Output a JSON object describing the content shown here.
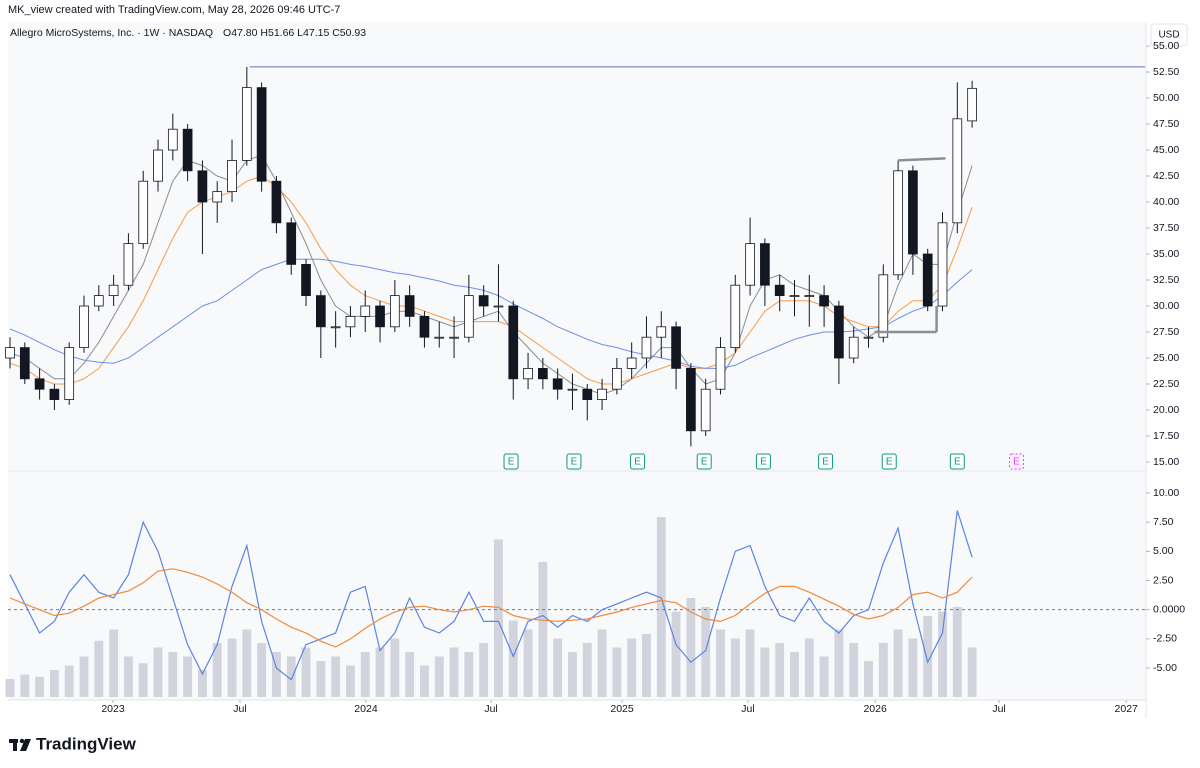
{
  "attribution": "MK_view created with TradingView.com, May 28, 2026 09:46 UTC-7",
  "brand": "TradingView",
  "chart_data": [
    {
      "type": "candlestick",
      "title": "Allegro MicroSystems, Inc. · 1W · NASDAQ",
      "ohlc_label": "O47.80 H51.66 L47.15 C50.93",
      "currency": "USD",
      "up_color": "#ffffff",
      "down_color": "#131722",
      "border_color": "#131722",
      "xlim": [
        -0.135,
        76.68
      ],
      "xticks": [
        {
          "value": 6.96,
          "label": "2023"
        },
        {
          "value": 15.54,
          "label": "Jul"
        },
        {
          "value": 24.05,
          "label": "2024"
        },
        {
          "value": 32.5,
          "label": "Jul"
        },
        {
          "value": 41.35,
          "label": "2025"
        },
        {
          "value": 49.86,
          "label": "Jul"
        },
        {
          "value": 58.45,
          "label": "2026"
        },
        {
          "value": 66.82,
          "label": "Jul"
        },
        {
          "value": 75.41,
          "label": "2027"
        }
      ],
      "ylim": [
        14.23,
        57.31
      ],
      "yticks": [
        {
          "value": 15,
          "label": "15.00"
        },
        {
          "value": 17.5,
          "label": "17.50"
        },
        {
          "value": 20,
          "label": "20.00"
        },
        {
          "value": 22.5,
          "label": "22.50"
        },
        {
          "value": 25,
          "label": "25.00"
        },
        {
          "value": 27.5,
          "label": "27.50"
        },
        {
          "value": 30,
          "label": "30.00"
        },
        {
          "value": 32.5,
          "label": "32.50"
        },
        {
          "value": 35,
          "label": "35.00"
        },
        {
          "value": 37.5,
          "label": "37.50"
        },
        {
          "value": 40,
          "label": "40.00"
        },
        {
          "value": 42.5,
          "label": "42.50"
        },
        {
          "value": 45,
          "label": "45.00"
        },
        {
          "value": 47.5,
          "label": "47.50"
        },
        {
          "value": 50,
          "label": "50.00"
        },
        {
          "value": 52.5,
          "label": "52.50"
        },
        {
          "value": 55,
          "label": "55.00"
        }
      ],
      "grid": false,
      "candles": {
        "open": [
          25,
          26,
          23,
          22,
          21,
          26,
          30,
          31,
          32,
          36,
          42,
          45,
          47,
          43,
          40,
          41,
          44,
          51,
          42,
          38,
          34,
          31,
          28,
          28,
          29,
          30,
          28,
          31,
          29,
          27,
          27,
          27,
          31,
          30,
          30,
          23,
          24,
          23,
          22,
          22,
          21,
          22,
          24,
          25,
          27,
          28,
          24,
          18,
          22,
          26,
          32,
          36,
          32,
          31,
          31,
          31,
          30,
          25,
          27,
          27,
          33,
          43,
          35,
          30,
          38,
          47.8
        ],
        "high": [
          27,
          26.5,
          24,
          22.5,
          26.5,
          31,
          32,
          33,
          37,
          43,
          46,
          48.5,
          47.5,
          44,
          42,
          46,
          53,
          51.5,
          42.5,
          38.5,
          34.5,
          31.5,
          29.5,
          30,
          31.5,
          30.5,
          32.5,
          32,
          29.5,
          28.5,
          29,
          33,
          32,
          34,
          30.5,
          25.5,
          25,
          24,
          23.5,
          22.5,
          23,
          25,
          26.5,
          29,
          29.5,
          28.5,
          24.5,
          23,
          27,
          33,
          38.5,
          36.5,
          33,
          32.5,
          33,
          32,
          30.5,
          28,
          28,
          34,
          44,
          43.5,
          35.5,
          39,
          51.5,
          51.66
        ],
        "low": [
          24,
          22.5,
          21,
          20,
          20.5,
          25.5,
          29.5,
          30,
          31.5,
          35.5,
          41,
          44,
          42,
          35,
          38,
          40,
          43.5,
          41,
          37,
          33,
          30,
          25,
          26,
          27,
          27.5,
          26.5,
          27.5,
          28,
          26,
          26,
          25,
          26.5,
          29,
          28.5,
          21,
          22,
          22,
          21,
          20,
          19,
          20,
          21.5,
          23,
          24,
          25,
          22,
          16.5,
          17.5,
          21.5,
          25.5,
          31,
          30,
          29.5,
          29,
          28,
          28,
          22.5,
          24.5,
          26,
          26.5,
          32.5,
          33,
          29.5,
          29.5,
          37,
          47.15
        ],
        "close": [
          26,
          23,
          22,
          21,
          26,
          30,
          31,
          32,
          36,
          42,
          45,
          47,
          43,
          40,
          41,
          44,
          51,
          42,
          38,
          34,
          31,
          28,
          28,
          29,
          30,
          28,
          31,
          29,
          27,
          27,
          27,
          31,
          30,
          30,
          23,
          24,
          23,
          22,
          22,
          21,
          22,
          24,
          25,
          27,
          28,
          24,
          18,
          22,
          26,
          32,
          36,
          32,
          31,
          31,
          31,
          30,
          25,
          27,
          27,
          33,
          43,
          35,
          30,
          38,
          48,
          50.93
        ]
      },
      "series": [
        {
          "color": "#8c8c8c",
          "values": [
            25.5,
            25,
            24,
            23,
            23,
            24.5,
            26.5,
            29,
            31.5,
            34,
            38,
            42,
            44,
            43.5,
            42.5,
            42,
            44,
            44.5,
            42,
            39,
            36,
            32.5,
            30,
            29,
            29,
            29,
            29.5,
            29.5,
            29,
            28.5,
            28,
            28.5,
            29,
            29.5,
            27.5,
            26,
            24.5,
            23.5,
            22.5,
            22,
            21.5,
            22,
            23,
            24.5,
            26,
            26,
            24,
            22.5,
            23,
            25.5,
            30,
            32.5,
            33,
            32,
            31.5,
            31,
            29.5,
            28,
            27,
            28,
            32,
            35,
            34,
            34,
            39,
            43.5
          ]
        },
        {
          "color": "#f59c4a",
          "values": [
            24.5,
            24,
            23,
            22.5,
            22.5,
            23,
            24,
            26,
            28,
            30.5,
            33.5,
            36.5,
            39,
            40,
            40.5,
            41,
            42,
            42.5,
            41.5,
            40,
            38,
            35.5,
            33.5,
            32,
            31,
            30.5,
            30,
            30,
            29.5,
            29,
            28.5,
            28.5,
            28.5,
            28.5,
            28,
            27,
            26,
            25,
            24,
            23,
            22.5,
            22.5,
            23,
            23.5,
            24,
            24.5,
            24,
            24,
            24.5,
            25.5,
            27.5,
            29.5,
            30.5,
            30.5,
            30.5,
            30,
            29,
            28.5,
            28,
            28,
            29.5,
            30.5,
            30.5,
            32,
            35.5,
            39.5
          ]
        },
        {
          "color": "#6f8fe8",
          "values": [
            27.8,
            27.2,
            26.5,
            25.8,
            25.2,
            24.8,
            24.6,
            24.5,
            25,
            26,
            27,
            28,
            29,
            30,
            30.5,
            31.5,
            32.5,
            33.5,
            34,
            34.5,
            34.5,
            34.5,
            34.3,
            34,
            33.8,
            33.5,
            33.2,
            33,
            32.7,
            32.4,
            32,
            31.8,
            31.5,
            31,
            30.2,
            29.5,
            28.8,
            28,
            27.4,
            26.8,
            26.3,
            26,
            25.6,
            25.3,
            25,
            24.7,
            24.2,
            24,
            24,
            24.3,
            25,
            25.6,
            26.2,
            26.8,
            27.2,
            27.5,
            27.5,
            27.6,
            27.8,
            28,
            28.8,
            29.5,
            30,
            31,
            32.3,
            33.5
          ]
        }
      ],
      "drawn_lines": [
        {
          "color": "#5b6ec7",
          "x": [
            16.2,
            76.68
          ],
          "y": [
            53,
            53
          ]
        },
        {
          "color": "#8a8f99",
          "x": [
            60,
            63.2
          ],
          "y": [
            44,
            44.2
          ]
        },
        {
          "color": "#8a8f99",
          "x": [
            58.4,
            62.6
          ],
          "y": [
            27.5,
            27.5
          ]
        },
        {
          "color": "#8a8f99",
          "x": [
            62.6,
            62.6
          ],
          "y": [
            27.5,
            30
          ]
        }
      ],
      "events": {
        "label": "E",
        "color": "#089981",
        "x": [
          33.85,
          38.1,
          42.4,
          46.9,
          50.9,
          55.1,
          59.4,
          64.0
        ]
      },
      "upcoming_event": {
        "label": "E",
        "color": "#e040fb",
        "x": 68.0
      }
    },
    {
      "type": "line",
      "xlim": [
        -0.135,
        76.68
      ],
      "ylim": [
        -7.74,
        11.8
      ],
      "yticks": [
        {
          "value": 10,
          "label": "10.00"
        },
        {
          "value": 7.5,
          "label": "7.50"
        },
        {
          "value": 5,
          "label": "5.00"
        },
        {
          "value": 2.5,
          "label": "2.50"
        },
        {
          "value": 0,
          "label": "0.0000"
        },
        {
          "value": -2.5,
          "label": "-2.50"
        },
        {
          "value": -5,
          "label": "-5.00"
        }
      ],
      "zero_line": true,
      "series": [
        {
          "color": "#5b84e0",
          "values": [
            3,
            0.5,
            -2,
            -1,
            1.5,
            3,
            1.5,
            1,
            3,
            7.5,
            5,
            1,
            -3,
            -5.5,
            -3,
            2,
            5.5,
            -1,
            -5,
            -6,
            -3,
            -2.5,
            -2,
            1.5,
            2,
            -3.5,
            -2,
            1,
            -1.5,
            -2,
            -1,
            1.5,
            -1,
            -1,
            -4,
            -1,
            -0.5,
            -1.5,
            -0.5,
            -1,
            0,
            0.5,
            1,
            1.5,
            1,
            -3,
            -4.5,
            -3.5,
            1,
            5,
            5.5,
            2,
            -0.5,
            -1,
            1,
            -1,
            -2,
            -0.5,
            0,
            4,
            7,
            0.5,
            -4.5,
            -2,
            8.5,
            4.5
          ]
        },
        {
          "color": "#f08a3c",
          "values": [
            1,
            0.5,
            0,
            -0.5,
            -0.3,
            0.3,
            1,
            1.3,
            1.6,
            2.3,
            3.3,
            3.5,
            3.2,
            2.8,
            2.2,
            1.5,
            0.6,
            0,
            -0.8,
            -1.5,
            -2,
            -2.7,
            -3.2,
            -2.5,
            -1.6,
            -0.8,
            -0.2,
            0.2,
            0.3,
            0,
            -0.2,
            0,
            0.3,
            0.2,
            -0.5,
            -0.8,
            -0.9,
            -1,
            -0.9,
            -0.8,
            -0.5,
            -0.2,
            0.2,
            0.5,
            0.8,
            0.6,
            -0.2,
            -0.8,
            -1,
            -0.5,
            0.5,
            1.4,
            2,
            2,
            1.5,
            0.9,
            0.3,
            -0.4,
            -0.8,
            -0.5,
            0.2,
            1.3,
            1.5,
            1,
            1.5,
            2.8
          ]
        }
      ],
      "volume": {
        "color": "#d1d4dc",
        "y2lim": [
          0,
          100
        ],
        "values": [
          8,
          10,
          9,
          12,
          14,
          18,
          25,
          30,
          18,
          15,
          22,
          20,
          18,
          12,
          24,
          26,
          30,
          24,
          20,
          18,
          22,
          16,
          18,
          14,
          20,
          22,
          26,
          20,
          14,
          18,
          22,
          20,
          24,
          70,
          34,
          30,
          60,
          26,
          20,
          24,
          30,
          22,
          26,
          28,
          80,
          38,
          44,
          40,
          30,
          26,
          30,
          22,
          24,
          20,
          26,
          18,
          30,
          24,
          16,
          24,
          30,
          26,
          36,
          38,
          40,
          22
        ]
      }
    }
  ]
}
